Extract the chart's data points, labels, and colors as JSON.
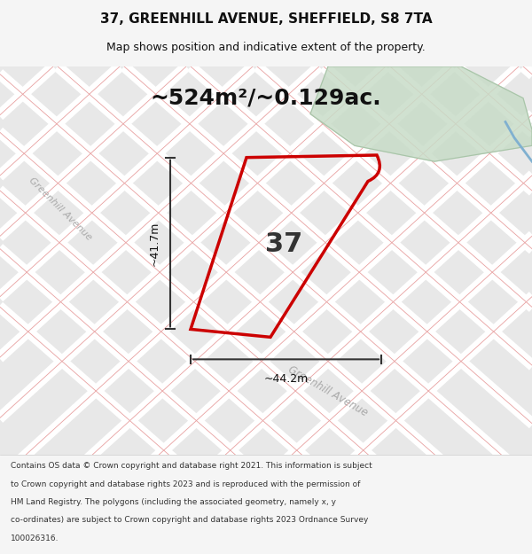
{
  "title": "37, GREENHILL AVENUE, SHEFFIELD, S8 7TA",
  "subtitle": "Map shows position and indicative extent of the property.",
  "area_text": "~524m²/~0.129ac.",
  "number_label": "37",
  "dim_height": "~41.7m",
  "dim_width": "~44.2m",
  "footer_text": "Contains OS data © Crown copyright and database right 2021. This information is subject to Crown copyright and database rights 2023 and is reproduced with the permission of HM Land Registry. The polygons (including the associated geometry, namely x, y co-ordinates) are subject to Crown copyright and database rights 2023 Ordnance Survey 100026316.",
  "bg_color": "#f0eeeb",
  "map_bg": "#ebebeb",
  "road_color": "#ffffff",
  "road_stroke": "#cccccc",
  "plot_stroke": "#cc0000",
  "plot_fill": "none",
  "green_area": "#c8dcc8",
  "street_label_left": "Greenhill Avenue",
  "street_label_bottom": "Greenhill Avenue",
  "title_color": "#111111",
  "footer_color": "#333333"
}
